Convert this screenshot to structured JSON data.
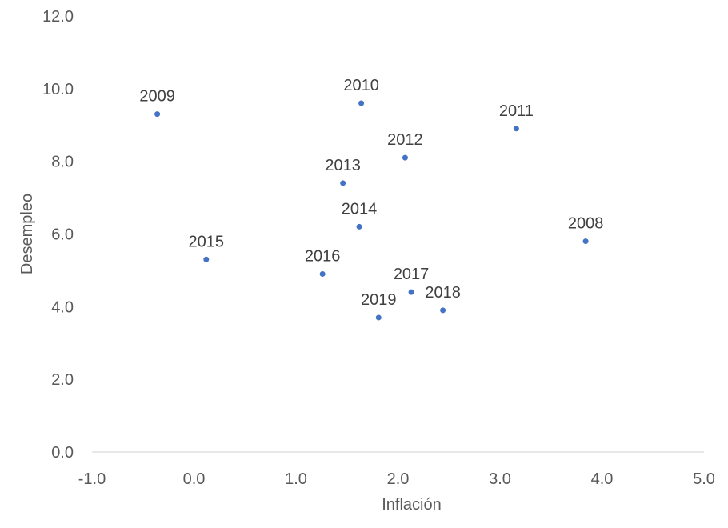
{
  "chart_data": {
    "type": "scatter",
    "title": "",
    "xlabel": "Inflación",
    "ylabel": "Desempleo",
    "xlim": [
      -1.0,
      5.0
    ],
    "ylim": [
      0.0,
      12.0
    ],
    "x_ticks": [
      "-1.0",
      "0.0",
      "1.0",
      "2.0",
      "3.0",
      "4.0",
      "5.0"
    ],
    "y_ticks": [
      "0.0",
      "2.0",
      "4.0",
      "6.0",
      "8.0",
      "10.0",
      "12.0"
    ],
    "grid": false,
    "legend": "none",
    "point_color": "#4472C4",
    "points": [
      {
        "label": "2008",
        "x": 3.84,
        "y": 5.8
      },
      {
        "label": "2009",
        "x": -0.36,
        "y": 9.3
      },
      {
        "label": "2010",
        "x": 1.64,
        "y": 9.6
      },
      {
        "label": "2011",
        "x": 3.16,
        "y": 8.9
      },
      {
        "label": "2012",
        "x": 2.07,
        "y": 8.1
      },
      {
        "label": "2013",
        "x": 1.46,
        "y": 7.4
      },
      {
        "label": "2014",
        "x": 1.62,
        "y": 6.2
      },
      {
        "label": "2015",
        "x": 0.12,
        "y": 5.3
      },
      {
        "label": "2016",
        "x": 1.26,
        "y": 4.9
      },
      {
        "label": "2017",
        "x": 2.13,
        "y": 4.4
      },
      {
        "label": "2018",
        "x": 2.44,
        "y": 3.9
      },
      {
        "label": "2019",
        "x": 1.81,
        "y": 3.7
      }
    ]
  }
}
